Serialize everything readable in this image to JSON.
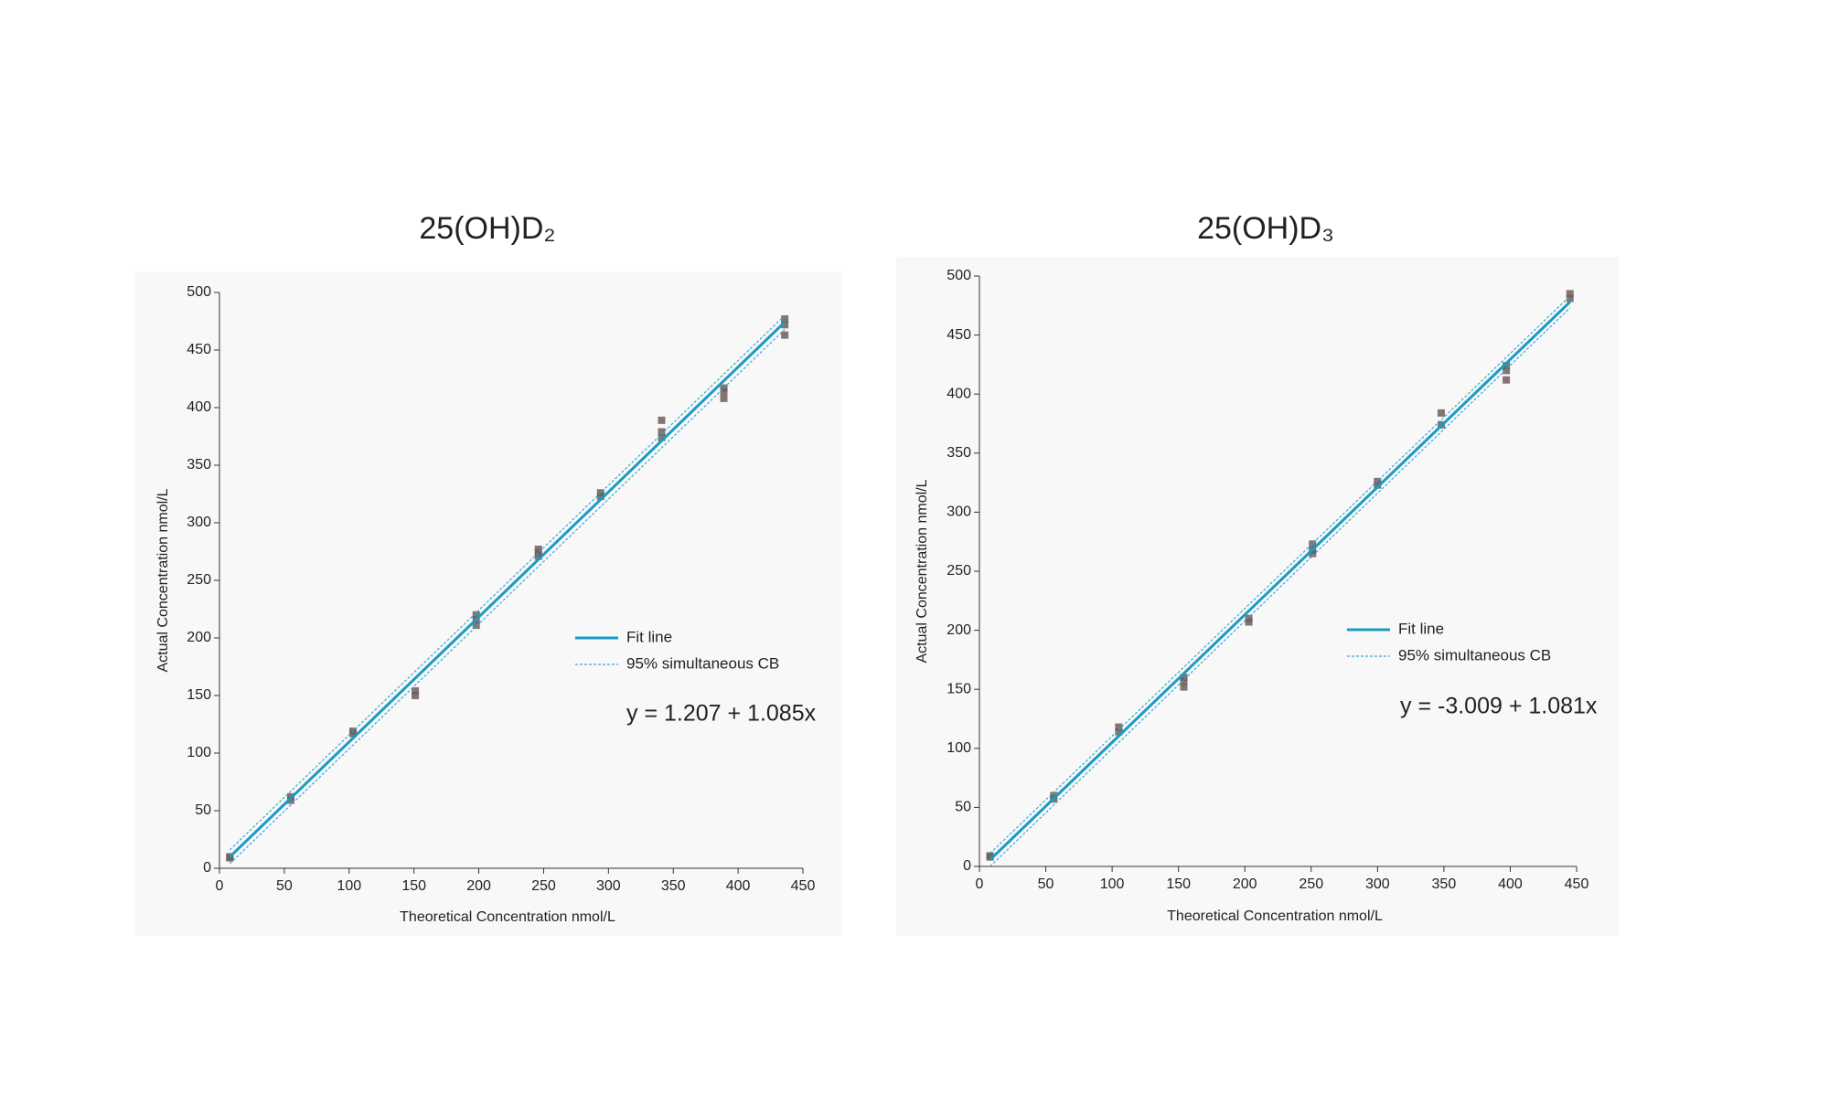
{
  "chart_data": [
    {
      "type": "scatter",
      "title": "25(OH)D₂",
      "x_label": "Theoretical Concentration nmol/L",
      "y_label": "Actual Concentration nmol/L",
      "annotation": "y = 1.207 + 1.085x",
      "xlim": [
        0,
        450
      ],
      "ylim": [
        0,
        500
      ],
      "xticks": [
        0,
        50,
        100,
        150,
        200,
        250,
        300,
        350,
        400,
        450
      ],
      "yticks": [
        0,
        50,
        100,
        150,
        200,
        250,
        300,
        350,
        400,
        450,
        500
      ],
      "series": [
        {
          "mode": "markers",
          "color": "#6e5e5a",
          "x": [
            8,
            8,
            55,
            55,
            103,
            103,
            151,
            151,
            198,
            198,
            198,
            246,
            246,
            246,
            294,
            294,
            341,
            341,
            341,
            389,
            389,
            389,
            436,
            436,
            436
          ],
          "values": [
            9,
            10,
            59,
            62,
            117,
            119,
            150,
            154,
            211,
            216,
            220,
            271,
            274,
            277,
            323,
            326,
            374,
            379,
            389,
            408,
            414,
            417,
            463,
            472,
            477
          ]
        },
        {
          "mode": "line",
          "name": "Fit line",
          "color": "#1a9bc4",
          "x": [
            8,
            436
          ],
          "values": [
            9.9,
            474.3
          ]
        },
        {
          "mode": "band",
          "name": "95% simultaneous CB",
          "color": "#3aa8cc",
          "x": [
            8,
            436
          ],
          "upper": [
            16,
            480
          ],
          "lower": [
            4,
            468
          ]
        }
      ]
    },
    {
      "type": "scatter",
      "title": "25(OH)D₃",
      "x_label": "Theoretical Concentration nmol/L",
      "y_label": "Actual Concentration nmol/L",
      "annotation": "y = -3.009 + 1.081x",
      "xlim": [
        0,
        450
      ],
      "ylim": [
        0,
        500
      ],
      "xticks": [
        0,
        50,
        100,
        150,
        200,
        250,
        300,
        350,
        400,
        450
      ],
      "yticks": [
        0,
        50,
        100,
        150,
        200,
        250,
        300,
        350,
        400,
        450,
        500
      ],
      "series": [
        {
          "mode": "markers",
          "color": "#6e5e5a",
          "x": [
            8,
            8,
            56,
            56,
            105,
            105,
            154,
            154,
            154,
            203,
            203,
            251,
            251,
            251,
            300,
            300,
            348,
            348,
            397,
            397,
            397,
            445,
            445
          ],
          "values": [
            8,
            9,
            57,
            60,
            114,
            118,
            152,
            157,
            160,
            207,
            210,
            265,
            268,
            273,
            323,
            326,
            374,
            384,
            412,
            420,
            424,
            481,
            485
          ]
        },
        {
          "mode": "line",
          "name": "Fit line",
          "color": "#1a9bc4",
          "x": [
            8,
            445
          ],
          "values": [
            5.6,
            478.0
          ]
        },
        {
          "mode": "band",
          "name": "95% simultaneous CB",
          "color": "#3aa8cc",
          "x": [
            8,
            445
          ],
          "upper": [
            11,
            483
          ],
          "lower": [
            0,
            473
          ]
        }
      ]
    }
  ]
}
